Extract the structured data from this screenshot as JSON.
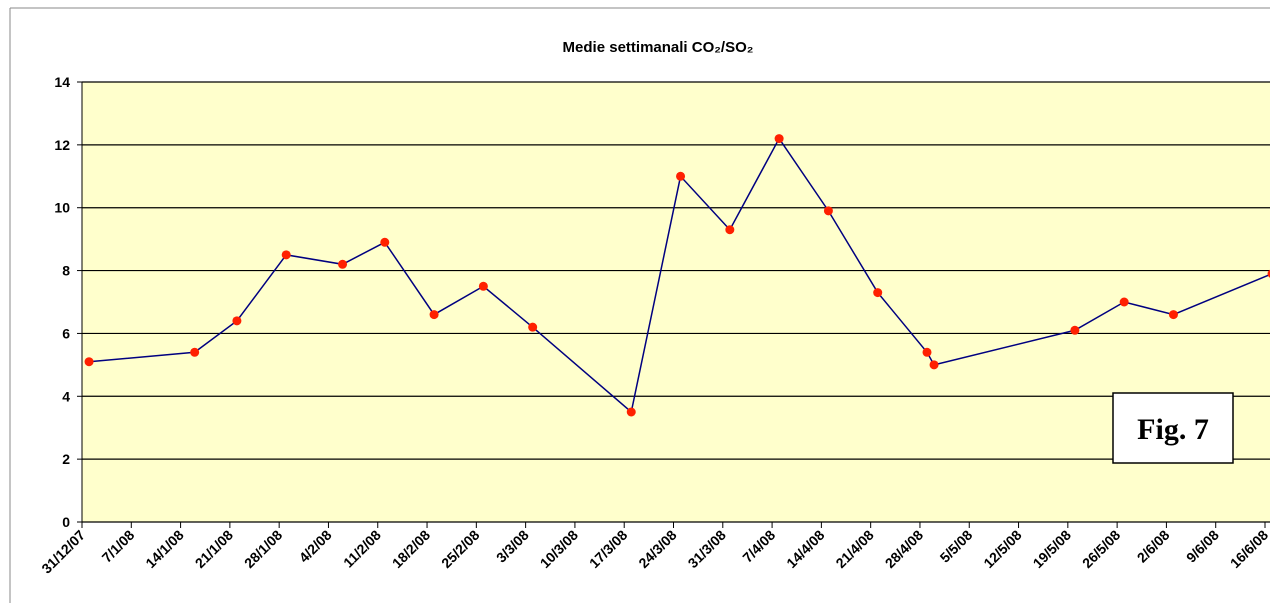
{
  "chart_data": {
    "type": "line",
    "title": "Medie settimanali CO₂/SO₂",
    "annotation": "Fig. 7",
    "x": [
      "2008-01-01",
      "2008-01-16",
      "2008-01-22",
      "2008-01-29",
      "2008-02-06",
      "2008-02-12",
      "2008-02-19",
      "2008-02-26",
      "2008-03-04",
      "2008-03-18",
      "2008-03-25",
      "2008-04-01",
      "2008-04-08",
      "2008-04-15",
      "2008-04-22",
      "2008-04-29",
      "2008-04-30",
      "2008-05-20",
      "2008-05-27",
      "2008-06-03",
      "2008-06-17"
    ],
    "series": [
      {
        "name": "CO₂/SO₂",
        "color": "#000080",
        "marker_color": "#ff2000",
        "values": [
          5.1,
          5.4,
          6.4,
          8.5,
          8.2,
          8.9,
          6.6,
          7.5,
          6.2,
          3.5,
          11.0,
          9.3,
          12.2,
          9.9,
          7.3,
          5.4,
          5.0,
          6.1,
          7.0,
          6.6,
          7.9
        ]
      }
    ],
    "xlim": [
      "2007-12-31",
      "2008-06-16"
    ],
    "xticks": [
      {
        "value": "2007-12-31",
        "label": "31/12/07"
      },
      {
        "value": "2008-01-07",
        "label": "7/1/08"
      },
      {
        "value": "2008-01-14",
        "label": "14/1/08"
      },
      {
        "value": "2008-01-21",
        "label": "21/1/08"
      },
      {
        "value": "2008-01-28",
        "label": "28/1/08"
      },
      {
        "value": "2008-02-04",
        "label": "4/2/08"
      },
      {
        "value": "2008-02-11",
        "label": "11/2/08"
      },
      {
        "value": "2008-02-18",
        "label": "18/2/08"
      },
      {
        "value": "2008-02-25",
        "label": "25/2/08"
      },
      {
        "value": "2008-03-03",
        "label": "3/3/08"
      },
      {
        "value": "2008-03-10",
        "label": "10/3/08"
      },
      {
        "value": "2008-03-17",
        "label": "17/3/08"
      },
      {
        "value": "2008-03-24",
        "label": "24/3/08"
      },
      {
        "value": "2008-03-31",
        "label": "31/3/08"
      },
      {
        "value": "2008-04-07",
        "label": "7/4/08"
      },
      {
        "value": "2008-04-14",
        "label": "14/4/08"
      },
      {
        "value": "2008-04-21",
        "label": "21/4/08"
      },
      {
        "value": "2008-04-28",
        "label": "28/4/08"
      },
      {
        "value": "2008-05-05",
        "label": "5/5/08"
      },
      {
        "value": "2008-05-12",
        "label": "12/5/08"
      },
      {
        "value": "2008-05-19",
        "label": "19/5/08"
      },
      {
        "value": "2008-05-26",
        "label": "26/5/08"
      },
      {
        "value": "2008-06-02",
        "label": "2/6/08"
      },
      {
        "value": "2008-06-09",
        "label": "9/6/08"
      },
      {
        "value": "2008-06-16",
        "label": "16/6/08"
      }
    ],
    "ylim": [
      0,
      14
    ],
    "yticks": [
      0,
      2,
      4,
      6,
      8,
      10,
      12,
      14
    ],
    "grid": true,
    "plot_background": "#ffffcc"
  }
}
